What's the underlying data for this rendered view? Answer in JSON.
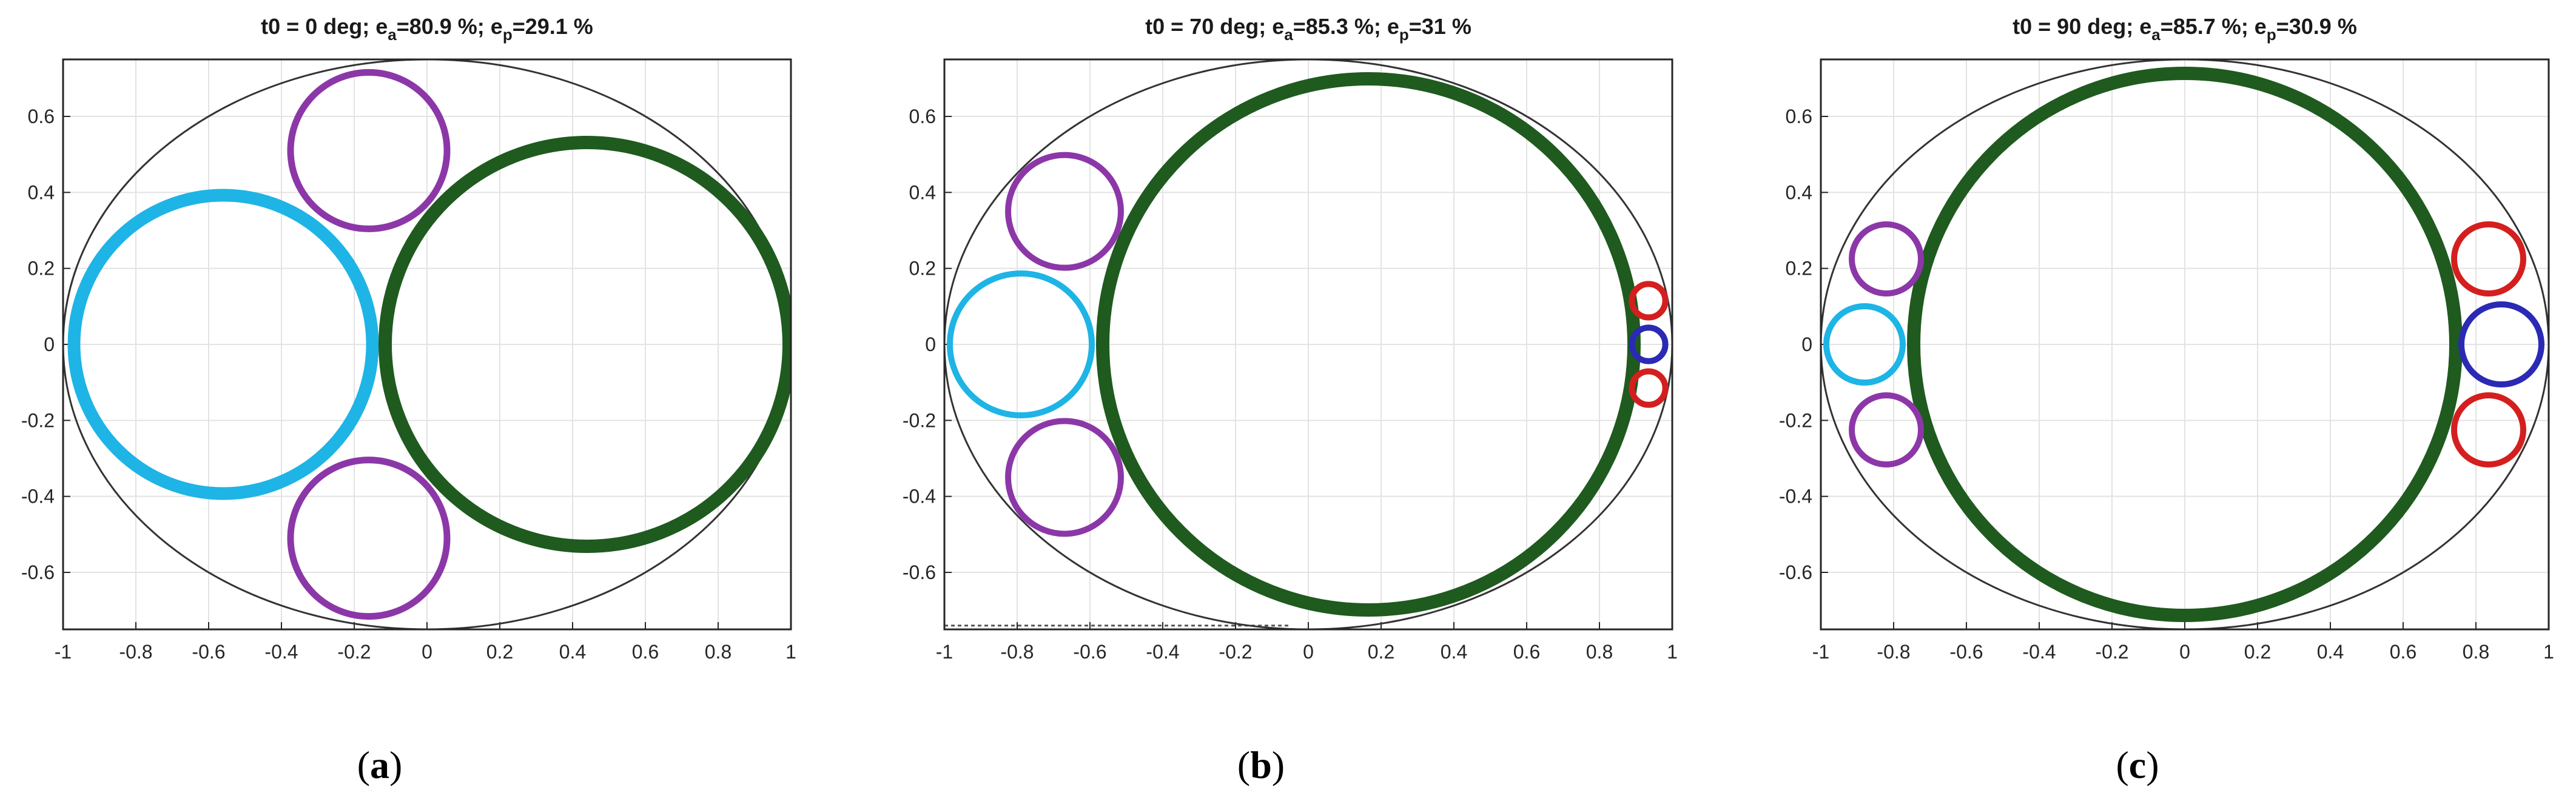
{
  "chart_data": [
    {
      "type": "scatter",
      "panel_label": "a",
      "title": {
        "prefix": "t0 = 0 deg; e",
        "sub_a": "a",
        "mid": "=80.9 %; e",
        "sub_p": "p",
        "suffix": "=29.1 %"
      },
      "xlim": [
        -1,
        1
      ],
      "ylim": [
        -0.75,
        0.75
      ],
      "xticks": [
        "-1",
        "-0.8",
        "-0.6",
        "-0.4",
        "-0.2",
        "0",
        "0.2",
        "0.4",
        "0.6",
        "0.8",
        "1"
      ],
      "yticks": [
        "0.6",
        "0.4",
        "0.2",
        "0",
        "-0.2",
        "-0.4",
        "-0.6"
      ],
      "grid": true,
      "ellipse": {
        "cx": 0,
        "cy": 0,
        "rx": 1,
        "ry": 0.75,
        "color": "#333333"
      },
      "circles": [
        {
          "cx": -0.56,
          "cy": 0,
          "r": 0.41,
          "color": "#1eb4e6"
        },
        {
          "cx": 0.44,
          "cy": 0,
          "r": 0.555,
          "color": "#1f5a1f"
        },
        {
          "cx": -0.16,
          "cy": 0.51,
          "r": 0.215,
          "color": "#8c37a8"
        },
        {
          "cx": -0.16,
          "cy": -0.51,
          "r": 0.215,
          "color": "#8c37a8"
        }
      ],
      "dashed_lines": []
    },
    {
      "type": "scatter",
      "panel_label": "b",
      "title": {
        "prefix": "t0 = 70 deg; e",
        "sub_a": "a",
        "mid": "=85.3 %; e",
        "sub_p": "p",
        "suffix": "=31 %"
      },
      "xlim": [
        -1,
        1
      ],
      "ylim": [
        -0.75,
        0.75
      ],
      "xticks": [
        "-1",
        "-0.8",
        "-0.6",
        "-0.4",
        "-0.2",
        "0",
        "0.2",
        "0.4",
        "0.6",
        "0.8",
        "1"
      ],
      "yticks": [
        "0.6",
        "0.4",
        "0.2",
        "0",
        "-0.2",
        "-0.4",
        "-0.6"
      ],
      "grid": true,
      "ellipse": {
        "cx": 0,
        "cy": 0,
        "rx": 1,
        "ry": 0.75,
        "color": "#333333"
      },
      "circles": [
        {
          "cx": -0.79,
          "cy": 0,
          "r": 0.195,
          "color": "#1eb4e6"
        },
        {
          "cx": 0.165,
          "cy": 0,
          "r": 0.73,
          "color": "#1f5a1f"
        },
        {
          "cx": -0.67,
          "cy": 0.35,
          "r": 0.155,
          "color": "#8c37a8"
        },
        {
          "cx": -0.67,
          "cy": -0.35,
          "r": 0.155,
          "color": "#8c37a8"
        },
        {
          "cx": 0.935,
          "cy": 0,
          "r": 0.046,
          "color": "#2a2ab4"
        },
        {
          "cx": 0.935,
          "cy": 0.115,
          "r": 0.046,
          "color": "#d41f1f"
        },
        {
          "cx": 0.935,
          "cy": -0.115,
          "r": 0.046,
          "color": "#d41f1f"
        }
      ],
      "dashed_lines": [
        {
          "x1": -1,
          "y1": 0.755,
          "x2": -0.05,
          "y2": 0.755
        },
        {
          "x1": -1,
          "y1": -0.74,
          "x2": -0.05,
          "y2": -0.74
        }
      ]
    },
    {
      "type": "scatter",
      "panel_label": "c",
      "title": {
        "prefix": "t0 = 90 deg; e",
        "sub_a": "a",
        "mid": "=85.7 %; e",
        "sub_p": "p",
        "suffix": "=30.9 %"
      },
      "xlim": [
        -1,
        1
      ],
      "ylim": [
        -0.75,
        0.75
      ],
      "xticks": [
        "-1",
        "-0.8",
        "-0.6",
        "-0.4",
        "-0.2",
        "0",
        "0.2",
        "0.4",
        "0.6",
        "0.8",
        "1"
      ],
      "yticks": [
        "0.6",
        "0.4",
        "0.2",
        "0",
        "-0.2",
        "-0.4",
        "-0.6"
      ],
      "grid": true,
      "ellipse": {
        "cx": 0,
        "cy": 0,
        "rx": 1,
        "ry": 0.75,
        "color": "#333333"
      },
      "circles": [
        {
          "cx": 0,
          "cy": 0,
          "r": 0.745,
          "color": "#1f5a1f"
        },
        {
          "cx": -0.88,
          "cy": 0,
          "r": 0.105,
          "color": "#1eb4e6"
        },
        {
          "cx": -0.82,
          "cy": 0.225,
          "r": 0.095,
          "color": "#8c37a8"
        },
        {
          "cx": -0.82,
          "cy": -0.225,
          "r": 0.095,
          "color": "#8c37a8"
        },
        {
          "cx": 0.87,
          "cy": 0,
          "r": 0.11,
          "color": "#2a2ab4"
        },
        {
          "cx": 0.835,
          "cy": 0.225,
          "r": 0.095,
          "color": "#d41f1f"
        },
        {
          "cx": 0.835,
          "cy": -0.225,
          "r": 0.095,
          "color": "#d41f1f"
        }
      ],
      "dashed_lines": []
    }
  ]
}
